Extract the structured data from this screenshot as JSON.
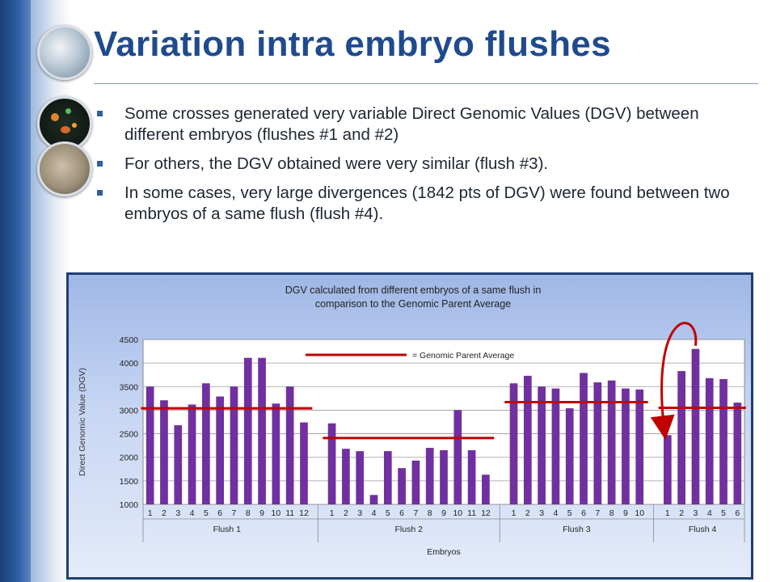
{
  "slide": {
    "title": "Variation intra embryo flushes",
    "bullets": [
      "Some crosses generated very variable Direct Genomic Values (DGV) between different embryos (flushes #1 and #2)",
      "For others, the DGV obtained were very similar (flush #3).",
      "In some cases, very large divergences (1842 pts of DGV) were found between two embryos of a same flush (flush #4)."
    ]
  },
  "colors": {
    "title": "#1f4b8e",
    "bar": "#7030a0",
    "average_line": "#c00000",
    "chart_bg_top": "#9fb7e6",
    "chart_bg_bottom": "#e4ebfa"
  },
  "chart_data": {
    "type": "bar",
    "title": "DGV calculated from different embryos of a same flush in comparison to the Genomic Parent Average",
    "xlabel": "Embryos",
    "ylabel": "Direct Genomic Value (DGV)",
    "ylim": [
      1000,
      4500
    ],
    "yticks": [
      1000,
      1500,
      2000,
      2500,
      3000,
      3500,
      4000,
      4500
    ],
    "grid": true,
    "legend": {
      "label": "= Genomic Parent Average",
      "placement": "top-center"
    },
    "groups": [
      {
        "name": "Flush 1",
        "categories": [
          "1",
          "2",
          "3",
          "4",
          "5",
          "6",
          "7",
          "8",
          "9",
          "10",
          "11",
          "12"
        ],
        "values": [
          3500,
          3210,
          2680,
          3120,
          3570,
          3290,
          3500,
          4110,
          4110,
          3140,
          3500,
          2740
        ],
        "average": 3040
      },
      {
        "name": "Flush 2",
        "categories": [
          "1",
          "2",
          "3",
          "4",
          "5",
          "6",
          "7",
          "8",
          "9",
          "10",
          "11",
          "12"
        ],
        "values": [
          2720,
          2180,
          2130,
          1200,
          2130,
          1770,
          1930,
          2200,
          2150,
          3000,
          2150,
          1630
        ],
        "average": 2410
      },
      {
        "name": "Flush 3",
        "categories": [
          "1",
          "2",
          "3",
          "4",
          "5",
          "6",
          "7",
          "8",
          "9",
          "10"
        ],
        "values": [
          3570,
          3730,
          3500,
          3460,
          3040,
          3790,
          3590,
          3630,
          3460,
          3440
        ],
        "average": 3170
      },
      {
        "name": "Flush 4",
        "categories": [
          "1",
          "2",
          "3",
          "4",
          "5",
          "6"
        ],
        "values": [
          2470,
          3830,
          4300,
          3680,
          3660,
          3160
        ],
        "average": 3050
      }
    ],
    "annotation": "arrow between Flush 4 embryo 1 and embryo 3"
  }
}
